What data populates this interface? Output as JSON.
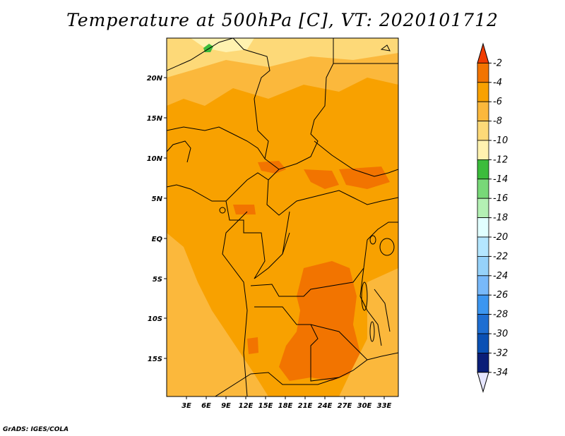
{
  "title": "Temperature at 500hPa [C], VT: 2020101712",
  "credit": "GrADS: IGES/COLA",
  "map": {
    "lat_labels": [
      "20N",
      "15N",
      "10N",
      "5N",
      "EQ",
      "5S",
      "10S",
      "15S"
    ],
    "lon_labels": [
      "3E",
      "6E",
      "9E",
      "12E",
      "15E",
      "18E",
      "21E",
      "24E",
      "27E",
      "30E",
      "33E"
    ],
    "background_level": "-4 to -6",
    "colors": {
      "level_m4_m6": "#f8a100",
      "level_m6_m8": "#fbb83c",
      "level_m8_m10": "#fdd978",
      "level_m10_m12": "#fff2b0",
      "level_m2_m4": "#f27400",
      "level_m12_m14": "#3cbc3c",
      "border": "#000000"
    }
  },
  "colorbar": {
    "labels": [
      "-2",
      "-4",
      "-6",
      "-8",
      "-10",
      "-12",
      "-14",
      "-16",
      "-18",
      "-20",
      "-22",
      "-24",
      "-26",
      "-28",
      "-30",
      "-32",
      "-34"
    ],
    "colors": [
      "#f03c00",
      "#f27400",
      "#f8a100",
      "#fbb83c",
      "#fdd978",
      "#fff2b0",
      "#3cbc3c",
      "#78d878",
      "#b4f0b4",
      "#e1ffff",
      "#b4e6ff",
      "#96d2fa",
      "#78b9fa",
      "#3c96f0",
      "#1e6ed2",
      "#0a50b4",
      "#0a1e78",
      "#e6e6ff"
    ]
  }
}
